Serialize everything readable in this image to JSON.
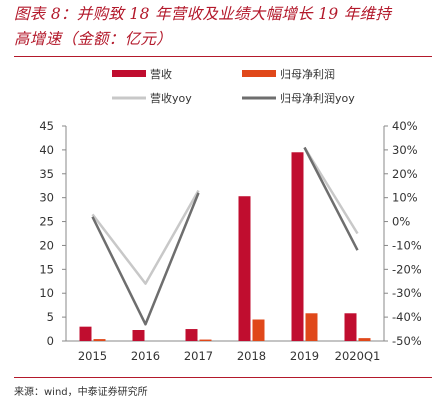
{
  "header": {
    "title_line1": "图表 8：并购致 18 年营收及业绩大幅增长 19 年维持",
    "title_line2": "高增速（金额：亿元）"
  },
  "footer": {
    "source": "来源：wind，中泰证券研究所"
  },
  "colors": {
    "revenue": "#c00d2f",
    "profit": "#e0481a",
    "revenue_yoy": "#c8c8c8",
    "profit_yoy": "#6e6e6e",
    "axis": "#888888",
    "title": "#b3192b"
  },
  "chart_data": {
    "type": "bar",
    "categories": [
      "2015",
      "2016",
      "2017",
      "2018",
      "2019",
      "2020Q1"
    ],
    "left_axis": {
      "ylim": [
        0,
        45
      ],
      "ticks": [
        "0",
        "5",
        "10",
        "15",
        "20",
        "25",
        "30",
        "35",
        "40",
        "45"
      ]
    },
    "right_axis": {
      "ylim": [
        -50,
        40
      ],
      "ticks": [
        "-50%",
        "-40%",
        "-30%",
        "-20%",
        "-10%",
        "0%",
        "10%",
        "20%",
        "30%",
        "40%"
      ]
    },
    "legend_position": "top",
    "series": [
      {
        "name": "营收",
        "kind": "bar",
        "axis": "left",
        "values": [
          3.0,
          2.3,
          2.5,
          30.3,
          39.5,
          5.8
        ]
      },
      {
        "name": "归母净利润",
        "kind": "bar",
        "axis": "left",
        "values": [
          0.4,
          0.0,
          0.3,
          4.5,
          5.8,
          0.6
        ]
      },
      {
        "name": "营收yoy",
        "kind": "line",
        "axis": "right",
        "values": [
          3,
          -26,
          13,
          null,
          31,
          -5
        ]
      },
      {
        "name": "归母净利润yoy",
        "kind": "line",
        "axis": "right",
        "values": [
          2,
          -43,
          12,
          null,
          31,
          -12
        ]
      }
    ]
  }
}
